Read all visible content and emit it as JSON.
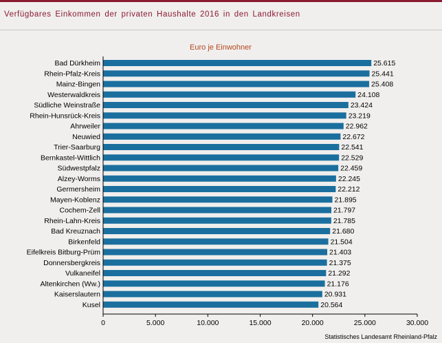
{
  "header": {
    "title": "Verfügbares Einkommen der privaten Haushalte 2016 in den Landkreisen"
  },
  "colors": {
    "bar": "#1b6f9e",
    "accent": "#8b1a2f",
    "subtitle": "#b5461a"
  },
  "chart_data": {
    "type": "bar",
    "orientation": "horizontal",
    "title": "Euro je Einwohner",
    "categories": [
      "Bad Dürkheim",
      "Rhein-Pfalz-Kreis",
      "Mainz-Bingen",
      "Westerwaldkreis",
      "Südliche Weinstraße",
      "Rhein-Hunsrück-Kreis",
      "Ahrweiler",
      "Neuwied",
      "Trier-Saarburg",
      "Bernkastel-Wittlich",
      "Südwestpfalz",
      "Alzey-Worms",
      "Germersheim",
      "Mayen-Koblenz",
      "Cochem-Zell",
      "Rhein-Lahn-Kreis",
      "Bad Kreuznach",
      "Birkenfeld",
      "Eifelkreis Bitburg-Prüm",
      "Donnersbergkreis",
      "Vulkaneifel",
      "Altenkirchen (Ww.)",
      "Kaiserslautern",
      "Kusel"
    ],
    "values": [
      25615,
      25441,
      25408,
      24108,
      23424,
      23219,
      22962,
      22672,
      22541,
      22529,
      22459,
      22245,
      22212,
      21895,
      21797,
      21785,
      21680,
      21504,
      21403,
      21375,
      21292,
      21176,
      20931,
      20564
    ],
    "value_labels": [
      "25.615",
      "25.441",
      "25.408",
      "24.108",
      "23.424",
      "23.219",
      "22.962",
      "22.672",
      "22.541",
      "22.529",
      "22.459",
      "22.245",
      "22.212",
      "21.895",
      "21.797",
      "21.785",
      "21.680",
      "21.504",
      "21.403",
      "21.375",
      "21.292",
      "21.176",
      "20.931",
      "20.564"
    ],
    "xlim": [
      0,
      30000
    ],
    "xticks": [
      0,
      5000,
      10000,
      15000,
      20000,
      25000,
      30000
    ],
    "xtick_labels": [
      "0",
      "5.000",
      "10.000",
      "15.000",
      "20.000",
      "25.000",
      "30.000"
    ],
    "grid": false,
    "source": "Statistisches Landesamt Rheinland-Pfalz"
  }
}
